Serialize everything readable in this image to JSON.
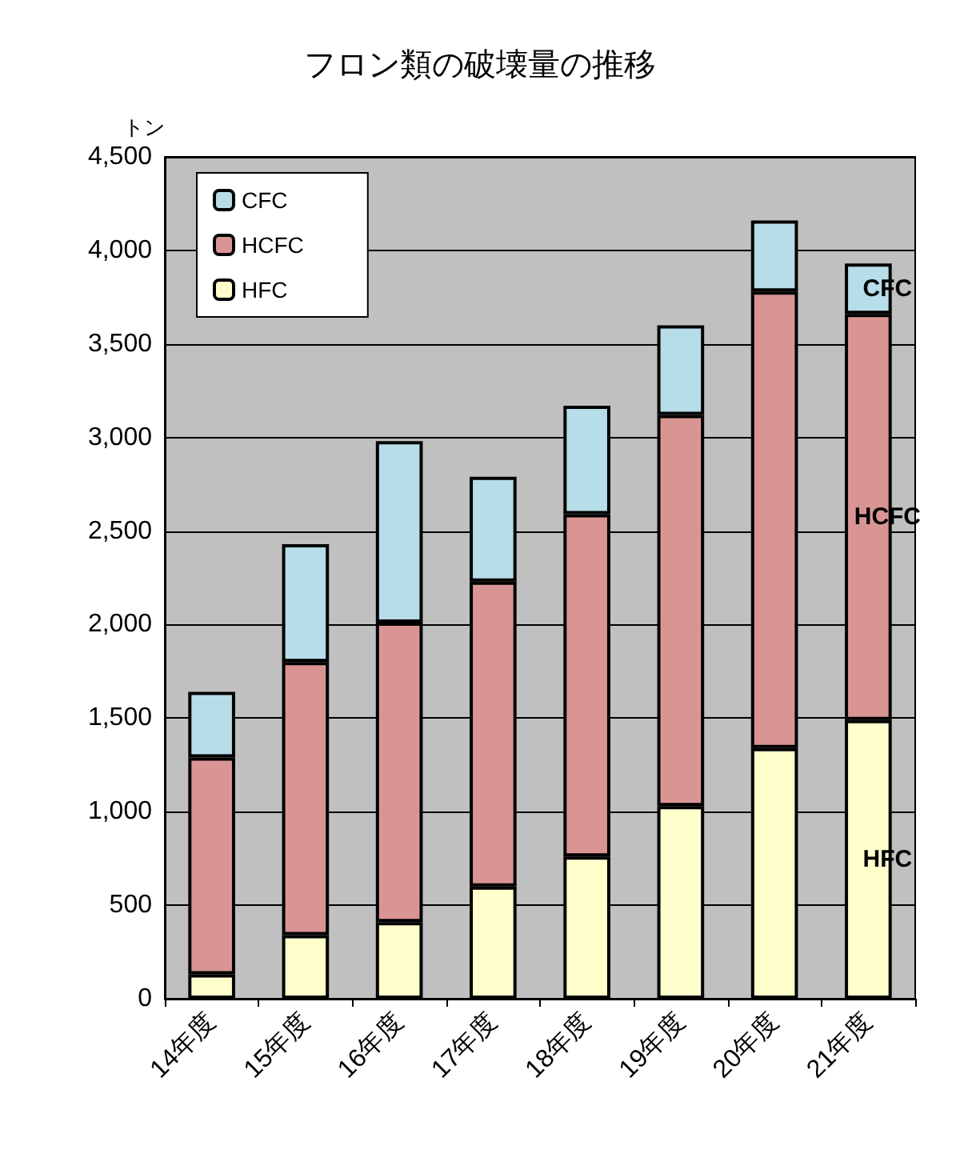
{
  "chart_data": {
    "type": "bar",
    "title": "フロン類の破壊量の推移",
    "ylabel": "トン",
    "stacked": true,
    "categories": [
      "14年度",
      "15年度",
      "16年度",
      "17年度",
      "18年度",
      "19年度",
      "20年度",
      "21年度"
    ],
    "series": [
      {
        "name": "HFC",
        "color": "#ffffcc",
        "values": [
          130,
          340,
          410,
          600,
          760,
          1030,
          1340,
          1490
        ]
      },
      {
        "name": "HCFC",
        "color": "#d99594",
        "values": [
          1160,
          1460,
          1600,
          1630,
          1830,
          2090,
          2440,
          2170
        ]
      },
      {
        "name": "CFC",
        "color": "#b7dde8",
        "values": [
          350,
          630,
          970,
          560,
          580,
          480,
          380,
          270
        ]
      }
    ],
    "ylim": [
      0,
      4500
    ],
    "yticks": [
      0,
      500,
      {
        "value": 1000,
        "label": "1,000"
      },
      {
        "value": 1500,
        "label": "1,500"
      },
      {
        "value": 2000,
        "label": "2,000"
      },
      {
        "value": 2500,
        "label": "2,500"
      },
      {
        "value": 3000,
        "label": "3,000"
      },
      {
        "value": 3500,
        "label": "3,500"
      },
      {
        "value": 4000,
        "label": "4,000"
      },
      {
        "value": 4500,
        "label": "4,500"
      }
    ],
    "grid": "y",
    "legend": "top left"
  }
}
